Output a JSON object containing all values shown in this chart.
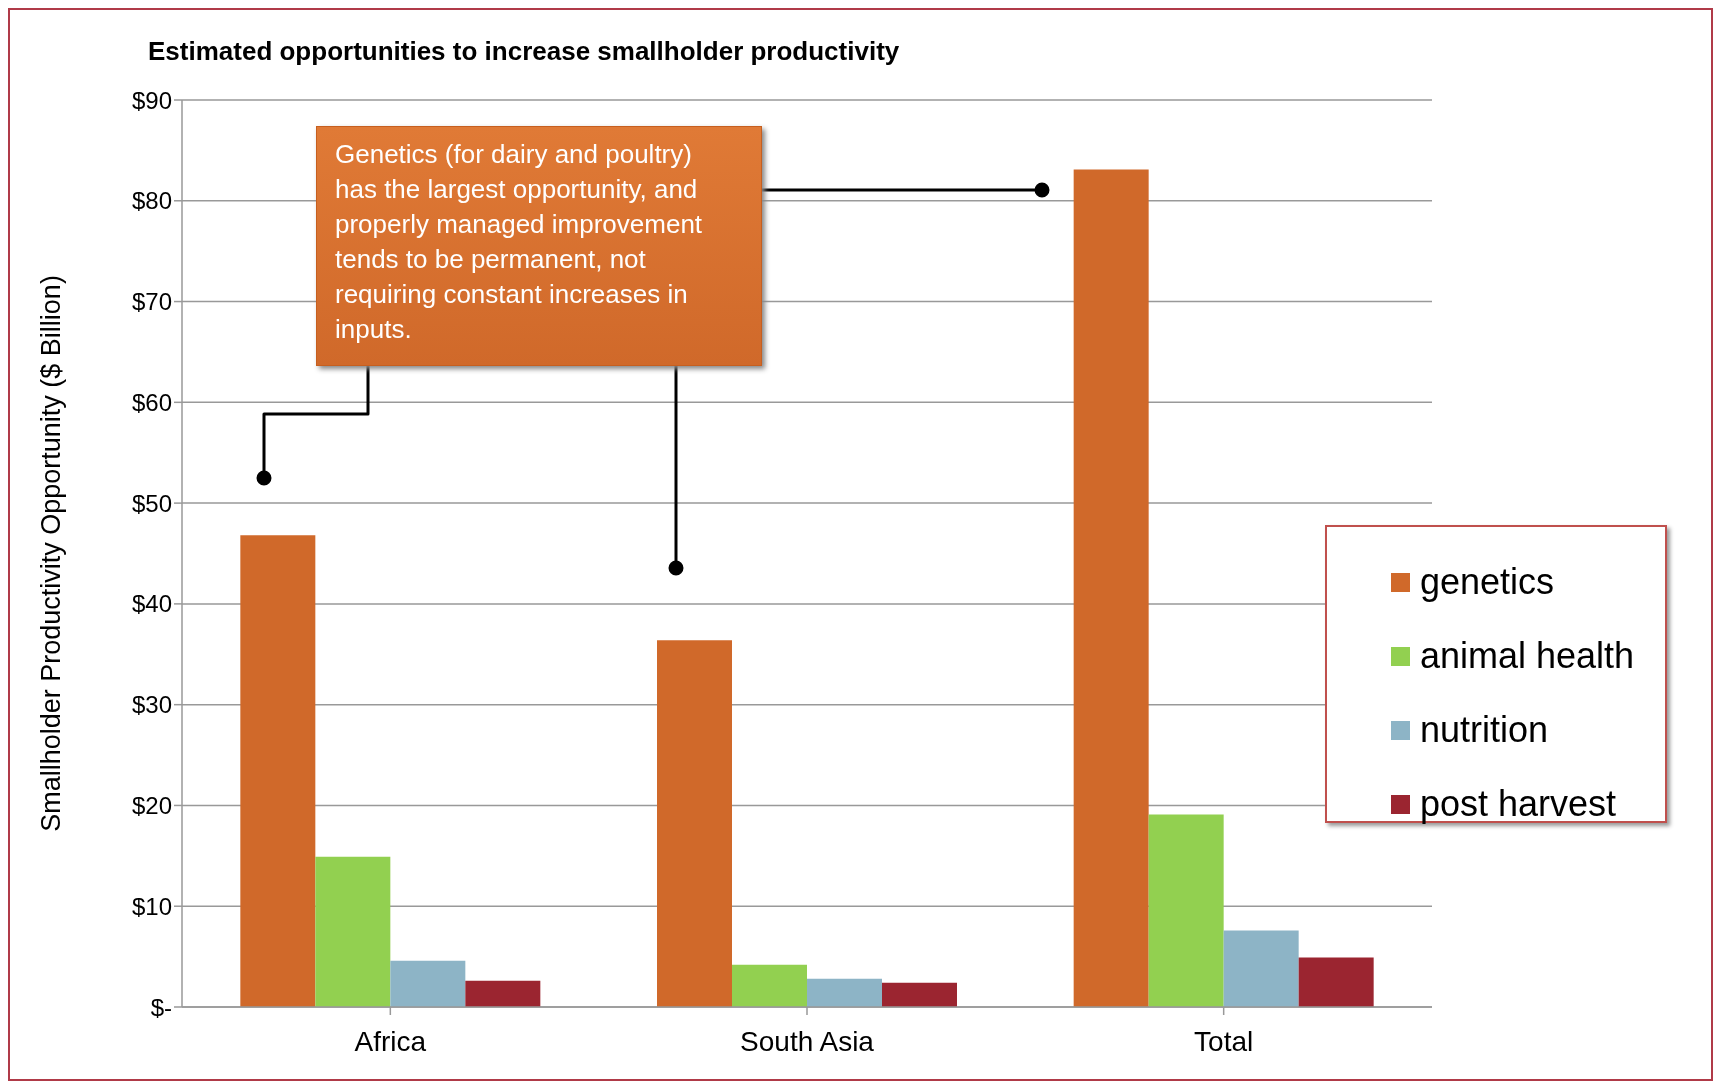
{
  "chart_data": {
    "type": "bar",
    "title": "Estimated opportunities to increase smallholder productivity",
    "ylabel": "Smallholder Productivity Opportunity ($ Billion)",
    "categories": [
      "Africa",
      "South Asia",
      "Total"
    ],
    "series": [
      {
        "name": "genetics",
        "color": "#d0692a",
        "values": [
          46.8,
          36.4,
          83.1
        ]
      },
      {
        "name": "animal health",
        "color": "#92d050",
        "values": [
          14.9,
          4.2,
          19.1
        ]
      },
      {
        "name": "nutrition",
        "color": "#8db4c6",
        "values": [
          4.6,
          2.8,
          7.6
        ]
      },
      {
        "name": "post harvest",
        "color": "#9b2530",
        "values": [
          2.6,
          2.4,
          4.9
        ]
      }
    ],
    "ylim": [
      0,
      90
    ],
    "yticks": [
      {
        "value": 0,
        "label": "$-"
      },
      {
        "value": 10,
        "label": "$10"
      },
      {
        "value": 20,
        "label": "$20"
      },
      {
        "value": 30,
        "label": "$30"
      },
      {
        "value": 40,
        "label": "$40"
      },
      {
        "value": 50,
        "label": "$50"
      },
      {
        "value": 60,
        "label": "$60"
      },
      {
        "value": 70,
        "label": "$70"
      },
      {
        "value": 80,
        "label": "$80"
      },
      {
        "value": 90,
        "label": "$90"
      }
    ],
    "grid": "y",
    "legend": "right",
    "annotations": [
      "Genetics (for dairy and poultry) has the largest opportunity, and properly managed improvement tends to be permanent, not requiring constant increases in inputs."
    ]
  }
}
